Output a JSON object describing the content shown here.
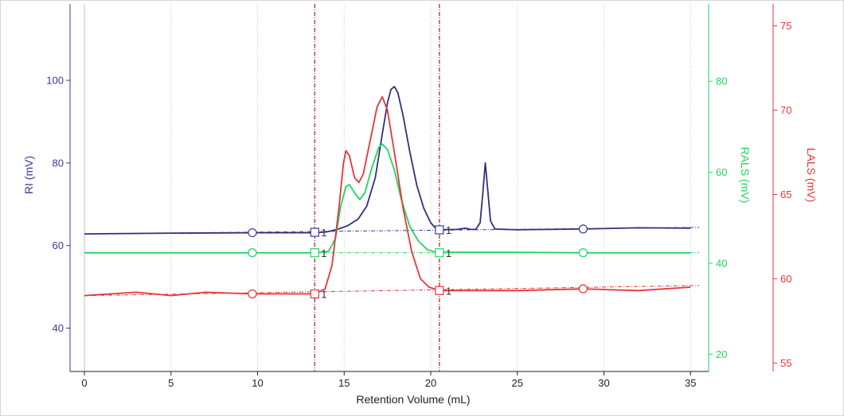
{
  "chart_data": {
    "type": "line",
    "xlabel": "Retention Volume (mL)",
    "xlim": [
      -0.8,
      36.3
    ],
    "xticks": [
      0,
      5,
      10,
      15,
      20,
      25,
      30,
      35
    ],
    "axes": [
      {
        "id": "ri",
        "label": "RI (mV)",
        "color": "#3a3a9c",
        "range": [
          29.5,
          118.5
        ],
        "ticks": [
          40,
          60,
          80,
          100
        ]
      },
      {
        "id": "rals",
        "label": "RALS (mV)",
        "color": "#1ed760",
        "range": [
          16.2,
          97.0
        ],
        "ticks": [
          20,
          40,
          60,
          80
        ]
      },
      {
        "id": "lals",
        "label": "LALS (mV)",
        "color": "#e8343a",
        "range": [
          54.5,
          76.3
        ],
        "ticks": [
          55,
          60,
          65,
          70,
          75
        ]
      }
    ],
    "grid": {
      "vertical": true,
      "horizontal": false
    },
    "cursors": [
      13.3,
      20.5
    ],
    "series": [
      {
        "axis": "ri",
        "color": "#30307e",
        "points": [
          [
            0,
            62.8
          ],
          [
            5,
            63.0
          ],
          [
            10,
            63.1
          ],
          [
            13.3,
            63.1
          ],
          [
            14.0,
            63.3
          ],
          [
            14.6,
            63.9
          ],
          [
            15.2,
            64.8
          ],
          [
            15.8,
            66.4
          ],
          [
            16.3,
            69.5
          ],
          [
            16.8,
            76.5
          ],
          [
            17.2,
            87.0
          ],
          [
            17.5,
            94.5
          ],
          [
            17.7,
            97.8
          ],
          [
            17.9,
            98.5
          ],
          [
            18.1,
            97.0
          ],
          [
            18.4,
            91.5
          ],
          [
            18.8,
            82.5
          ],
          [
            19.2,
            74.5
          ],
          [
            19.6,
            69.0
          ],
          [
            20.0,
            65.5
          ],
          [
            20.3,
            64.1
          ],
          [
            20.6,
            63.8
          ],
          [
            21.5,
            63.9
          ],
          [
            22.0,
            64.2
          ],
          [
            22.3,
            63.9
          ],
          [
            22.6,
            63.9
          ],
          [
            22.85,
            65.5
          ],
          [
            23.0,
            72.5
          ],
          [
            23.15,
            80.0
          ],
          [
            23.3,
            73.0
          ],
          [
            23.45,
            66.0
          ],
          [
            23.7,
            64.0
          ],
          [
            25,
            63.8
          ],
          [
            28.8,
            64.0
          ],
          [
            32,
            64.3
          ],
          [
            35,
            64.2
          ]
        ]
      },
      {
        "axis": "rals",
        "color": "#1ed760",
        "points": [
          [
            0,
            42.3
          ],
          [
            5,
            42.3
          ],
          [
            10,
            42.3
          ],
          [
            13.3,
            42.3
          ],
          [
            14.1,
            42.6
          ],
          [
            14.5,
            45.5
          ],
          [
            14.8,
            52.5
          ],
          [
            15.1,
            56.8
          ],
          [
            15.3,
            57.3
          ],
          [
            15.6,
            55.5
          ],
          [
            15.9,
            54.0
          ],
          [
            16.2,
            55.5
          ],
          [
            16.6,
            61.0
          ],
          [
            17.0,
            65.5
          ],
          [
            17.2,
            66.2
          ],
          [
            17.5,
            65.0
          ],
          [
            17.9,
            60.5
          ],
          [
            18.3,
            54.0
          ],
          [
            18.8,
            48.0
          ],
          [
            19.3,
            44.8
          ],
          [
            19.8,
            43.0
          ],
          [
            20.2,
            42.5
          ],
          [
            20.5,
            42.4
          ],
          [
            25,
            42.4
          ],
          [
            28.8,
            42.3
          ],
          [
            32,
            42.3
          ],
          [
            35,
            42.3
          ]
        ]
      },
      {
        "axis": "lals",
        "color": "#e8343a",
        "points": [
          [
            0,
            59.0
          ],
          [
            1.5,
            59.1
          ],
          [
            3,
            59.2
          ],
          [
            5,
            59.0
          ],
          [
            7,
            59.2
          ],
          [
            9.7,
            59.1
          ],
          [
            11.5,
            59.1
          ],
          [
            13.3,
            59.1
          ],
          [
            13.9,
            59.4
          ],
          [
            14.3,
            60.8
          ],
          [
            14.7,
            64.2
          ],
          [
            14.95,
            66.8
          ],
          [
            15.1,
            67.6
          ],
          [
            15.3,
            67.3
          ],
          [
            15.6,
            66.0
          ],
          [
            15.85,
            65.7
          ],
          [
            16.1,
            66.2
          ],
          [
            16.5,
            68.2
          ],
          [
            16.9,
            70.2
          ],
          [
            17.2,
            70.8
          ],
          [
            17.5,
            70.0
          ],
          [
            17.9,
            67.5
          ],
          [
            18.4,
            64.2
          ],
          [
            18.9,
            61.6
          ],
          [
            19.4,
            60.0
          ],
          [
            19.9,
            59.5
          ],
          [
            20.5,
            59.3
          ],
          [
            25,
            59.3
          ],
          [
            28.8,
            59.4
          ],
          [
            32,
            59.3
          ],
          [
            35,
            59.5
          ]
        ]
      }
    ],
    "baselines": [
      {
        "axis": "ri",
        "from": [
          0,
          62.8
        ],
        "to": [
          35.5,
          64.4
        ]
      },
      {
        "axis": "rals",
        "from": [
          0,
          42.3
        ],
        "to": [
          35.5,
          42.3
        ]
      },
      {
        "axis": "lals",
        "from": [
          0,
          59.0
        ],
        "to": [
          35.5,
          59.6
        ]
      }
    ],
    "markers": [
      {
        "axis": "ri",
        "shape": "circle",
        "x": 9.7,
        "y": 63.1
      },
      {
        "axis": "ri",
        "shape": "square",
        "x": 13.3,
        "y": 63.2,
        "label": "1"
      },
      {
        "axis": "ri",
        "shape": "square",
        "x": 20.5,
        "y": 63.8,
        "label": "1"
      },
      {
        "axis": "ri",
        "shape": "circle",
        "x": 28.8,
        "y": 64.0
      },
      {
        "axis": "rals",
        "shape": "circle",
        "x": 9.7,
        "y": 42.3
      },
      {
        "axis": "rals",
        "shape": "square",
        "x": 13.3,
        "y": 42.3,
        "label": "1"
      },
      {
        "axis": "rals",
        "shape": "square",
        "x": 20.5,
        "y": 42.3,
        "label": "1"
      },
      {
        "axis": "rals",
        "shape": "circle",
        "x": 28.8,
        "y": 42.3
      },
      {
        "axis": "lals",
        "shape": "circle",
        "x": 9.7,
        "y": 59.1
      },
      {
        "axis": "lals",
        "shape": "square",
        "x": 13.3,
        "y": 59.1,
        "label": "1"
      },
      {
        "axis": "lals",
        "shape": "square",
        "x": 20.5,
        "y": 59.3,
        "label": "1"
      },
      {
        "axis": "lals",
        "shape": "circle",
        "x": 28.8,
        "y": 59.4
      }
    ]
  }
}
